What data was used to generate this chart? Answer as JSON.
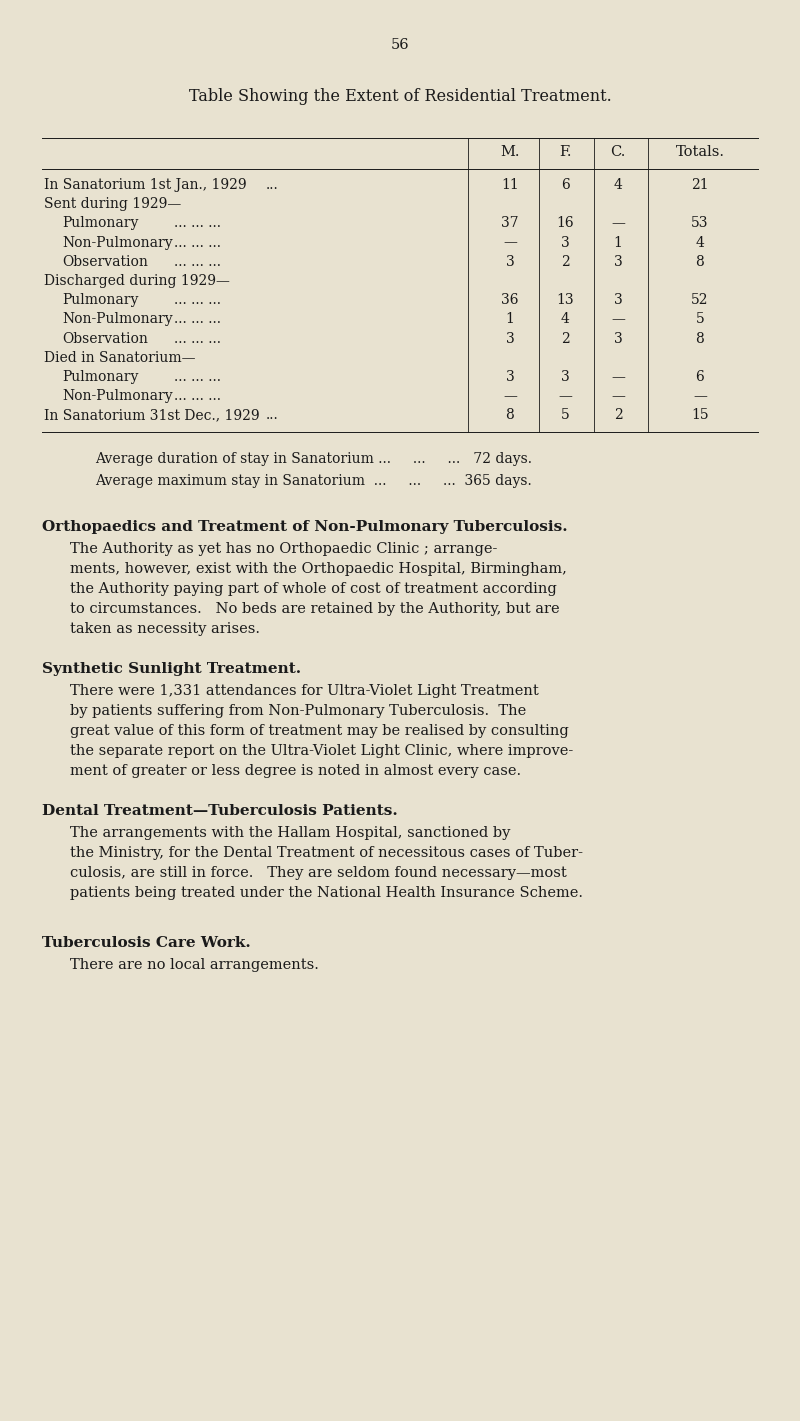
{
  "bg_color": "#e8e2d0",
  "text_color": "#1a1a1a",
  "page_number": "56",
  "title_parts": [
    {
      "text": "T",
      "sc": false
    },
    {
      "text": "able ",
      "sc": false
    },
    {
      "text": "S",
      "sc": false
    },
    {
      "text": "howing ",
      "sc": false
    },
    {
      "text": "the ",
      "sc": false
    },
    {
      "text": "E",
      "sc": false
    },
    {
      "text": "xtent of ",
      "sc": false
    },
    {
      "text": "R",
      "sc": false
    },
    {
      "text": "esidential ",
      "sc": false
    },
    {
      "text": "T",
      "sc": false
    },
    {
      "text": "reatment.",
      "sc": false
    }
  ],
  "title": "Table Showing the Extent of Residential Treatment.",
  "table_headers": [
    "M.",
    "F.",
    "C.",
    "Totals."
  ],
  "table_rows": [
    {
      "label": "In Sanatorium 1st Jan., 1929",
      "dots": "...",
      "indent": 0,
      "values": [
        "11",
        "6",
        "4",
        "21"
      ]
    },
    {
      "label": "Sent during 1929—",
      "dots": "",
      "indent": 0,
      "values": [
        null,
        null,
        null,
        null
      ]
    },
    {
      "label": "Pulmonary",
      "dots": "... ... ...",
      "indent": 1,
      "values": [
        "37",
        "16",
        "—",
        "53"
      ]
    },
    {
      "label": "Non-Pulmonary",
      "dots": "... ... ...",
      "indent": 1,
      "values": [
        "—",
        "3",
        "1",
        "4"
      ]
    },
    {
      "label": "Observation",
      "dots": "... ... ...",
      "indent": 1,
      "values": [
        "3",
        "2",
        "3",
        "8"
      ]
    },
    {
      "label": "Discharged during 1929—",
      "dots": "",
      "indent": 0,
      "values": [
        null,
        null,
        null,
        null
      ]
    },
    {
      "label": "Pulmonary",
      "dots": "... ... ...",
      "indent": 1,
      "values": [
        "36",
        "13",
        "3",
        "52"
      ]
    },
    {
      "label": "Non-Pulmonary",
      "dots": "... ... ...",
      "indent": 1,
      "values": [
        "1",
        "4",
        "—",
        "5"
      ]
    },
    {
      "label": "Observation",
      "dots": "... ... ...",
      "indent": 1,
      "values": [
        "3",
        "2",
        "3",
        "8"
      ]
    },
    {
      "label": "Died in Sanatorium—",
      "dots": "",
      "indent": 0,
      "values": [
        null,
        null,
        null,
        null
      ]
    },
    {
      "label": "Pulmonary",
      "dots": "... ... ...",
      "indent": 1,
      "values": [
        "3",
        "3",
        "—",
        "6"
      ]
    },
    {
      "label": "Non-Pulmonary",
      "dots": "... ... ...",
      "indent": 1,
      "values": [
        "—",
        "—",
        "—",
        "—"
      ]
    },
    {
      "label": "In Sanatorium 31st Dec., 1929",
      "dots": "...",
      "indent": 0,
      "values": [
        "8",
        "5",
        "2",
        "15"
      ]
    }
  ],
  "note1": "Average duration of stay in Sanatorium ...     ...     ...   72 days.",
  "note2": "Average maximum stay in Sanatorium  ...     ...     ...  365 days.",
  "section1_title": "Orthopaedics and Treatment of Non-Pulmonary Tuberculosis.",
  "section1_lines": [
    "The Authority as yet has no Orthopaedic Clinic ; arrange-",
    "ments, however, exist with the Orthopaedic Hospital, Birmingham,",
    "the Authority paying part of whole of cost of treatment according",
    "to circumstances.   No beds are retained by the Authority, but are",
    "taken as necessity arises."
  ],
  "section2_title": "Synthetic Sunlight Treatment.",
  "section2_lines": [
    "There were 1,331 attendances for Ultra-Violet Light Treatment",
    "by patients suffering from Non-Pulmonary Tuberculosis.  The",
    "great value of this form of treatment may be realised by consulting",
    "the separate report on the Ultra-Violet Light Clinic, where improve-",
    "ment of greater or less degree is noted in almost every case."
  ],
  "section3_title": "Dental Treatment—Tuberculosis Patients.",
  "section3_lines": [
    "The arrangements with the Hallam Hospital, sanctioned by",
    "the Ministry, for the Dental Treatment of necessitous cases of Tuber-",
    "culosis, are still in force.   They are seldom found necessary—most",
    "patients being treated under the National Health Insurance Scheme."
  ],
  "section4_title": "Tuberculosis Care Work.",
  "section4_lines": [
    "There are no local arrangements."
  ],
  "fig_width": 8.0,
  "fig_height": 14.21,
  "dpi": 100
}
